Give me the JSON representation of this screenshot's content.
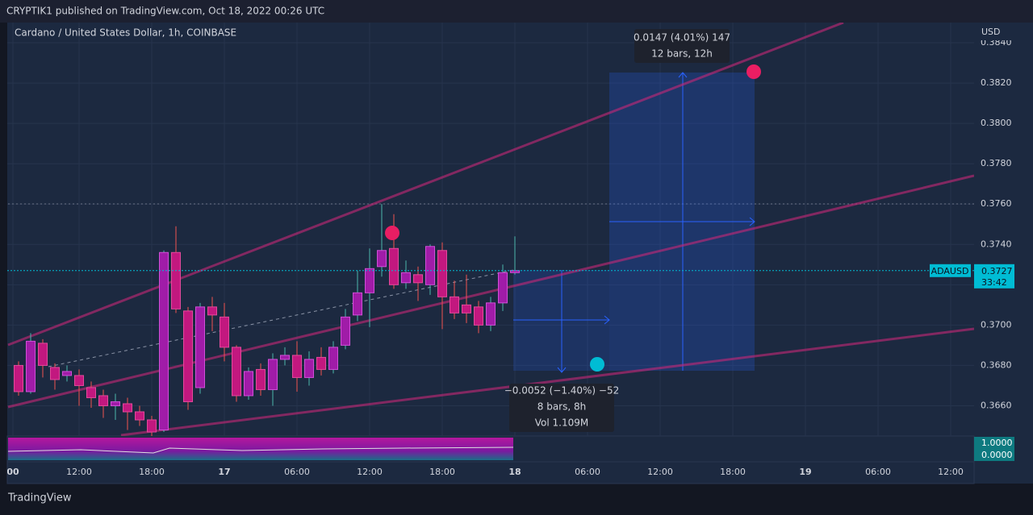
{
  "header": {
    "publisher": "CRYPTIK1 published on TradingView.com, Oct 18, 2022 00:26 UTC"
  },
  "footer": {
    "brand": "TradingView"
  },
  "chart_data": {
    "type": "candlestick",
    "title": "Cardano / United States Dollar, 1h, COINBASE",
    "y_axis_label": "USD",
    "symbol": "ADAUSD",
    "last_price": 0.3727,
    "countdown": "33:42",
    "up_color": "#a01ca8",
    "down_color": "#c2187f",
    "up_wick": "#4db6ac",
    "down_wick": "#ef5350",
    "ylim": [
      0.3645,
      0.385
    ],
    "yticks": [
      {
        "value": 0.366,
        "label": "0.3660"
      },
      {
        "value": 0.368,
        "label": "0.3680"
      },
      {
        "value": 0.37,
        "label": "0.3700"
      },
      {
        "value": 0.372,
        "label": "0.3720"
      },
      {
        "value": 0.374,
        "label": "0.3740"
      },
      {
        "value": 0.376,
        "label": "0.3760"
      },
      {
        "value": 0.378,
        "label": "0.3780"
      },
      {
        "value": 0.38,
        "label": "0.3800"
      },
      {
        "value": 0.382,
        "label": "0.3820"
      },
      {
        "value": 0.384,
        "label": "0.3840"
      }
    ],
    "x_labels": [
      "00",
      "12:00",
      "18:00",
      "17",
      "06:00",
      "12:00",
      "18:00",
      "18",
      "06:00",
      "12:00",
      "18:00",
      "19",
      "06:00",
      "12:00"
    ],
    "open": [
      0.368,
      0.3667,
      0.3691,
      0.3679,
      0.3675,
      0.3675,
      0.3669,
      0.3665,
      0.366,
      0.3661,
      0.3657,
      0.3653,
      0.3648,
      0.3736,
      0.3707,
      0.3669,
      0.3709,
      0.3704,
      0.3689,
      0.3665,
      0.3678,
      0.3668,
      0.3683,
      0.3685,
      0.3674,
      0.3684,
      0.3678,
      0.369,
      0.3705,
      0.3716,
      0.3729,
      0.3738,
      0.3721,
      0.3725,
      0.372,
      0.3737,
      0.3714,
      0.371,
      0.3709,
      0.37,
      0.3711,
      0.3726
    ],
    "high": [
      0.3682,
      0.3696,
      0.3693,
      0.3681,
      0.368,
      0.3678,
      0.3672,
      0.3668,
      0.3666,
      0.3664,
      0.366,
      0.3655,
      0.3737,
      0.3749,
      0.3709,
      0.3711,
      0.3714,
      0.3711,
      0.369,
      0.3679,
      0.3681,
      0.3686,
      0.3689,
      0.3692,
      0.3687,
      0.3689,
      0.3692,
      0.3708,
      0.3727,
      0.3738,
      0.376,
      0.3755,
      0.3732,
      0.3729,
      0.374,
      0.3741,
      0.3722,
      0.3725,
      0.3712,
      0.3714,
      0.373,
      0.3744
    ],
    "low": [
      0.3665,
      0.3666,
      0.3674,
      0.3668,
      0.3672,
      0.366,
      0.3659,
      0.3654,
      0.3653,
      0.3648,
      0.365,
      0.3645,
      0.3647,
      0.3706,
      0.3658,
      0.3666,
      0.3697,
      0.3682,
      0.3662,
      0.3663,
      0.3665,
      0.366,
      0.368,
      0.3667,
      0.367,
      0.3675,
      0.3676,
      0.3688,
      0.3702,
      0.3699,
      0.3724,
      0.3718,
      0.3718,
      0.3712,
      0.3715,
      0.3698,
      0.3703,
      0.3701,
      0.3696,
      0.3697,
      0.3707,
      0.3725
    ],
    "close": [
      0.3667,
      0.3692,
      0.368,
      0.3673,
      0.3677,
      0.367,
      0.3664,
      0.366,
      0.3662,
      0.3657,
      0.3653,
      0.3647,
      0.3736,
      0.3708,
      0.3662,
      0.3709,
      0.3705,
      0.3689,
      0.3665,
      0.3677,
      0.3668,
      0.3683,
      0.3685,
      0.3674,
      0.3683,
      0.3678,
      0.3689,
      0.3704,
      0.3716,
      0.3728,
      0.3737,
      0.372,
      0.3726,
      0.3721,
      0.3739,
      0.3714,
      0.3706,
      0.3706,
      0.37,
      0.3711,
      0.3726,
      0.3727
    ],
    "long_measure": {
      "line1": "0.0147 (4.01%) 147",
      "line2": "12 bars, 12h"
    },
    "short_measure": {
      "line1": "−0.0052 (−1.40%) −52",
      "line2": "8 bars, 8h",
      "line3": "Vol 1.109M"
    },
    "indicator_yticks": [
      {
        "value": 1,
        "label": "1.0000"
      },
      {
        "value": 0,
        "label": "0.0000"
      }
    ]
  }
}
